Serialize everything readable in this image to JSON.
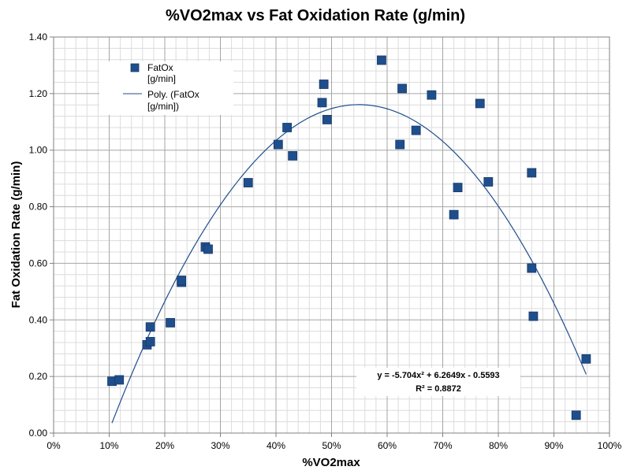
{
  "chart_data": {
    "type": "scatter",
    "title": "%VO2max  vs Fat Oxidation Rate (g/min)",
    "xlabel": "%VO2max",
    "ylabel": "Fat Oxidation Rate (g/min)",
    "xlim": [
      0,
      1
    ],
    "ylim": [
      0,
      1.4
    ],
    "x_ticks": [
      "0%",
      "10%",
      "20%",
      "30%",
      "40%",
      "50%",
      "60%",
      "70%",
      "80%",
      "90%",
      "100%"
    ],
    "y_ticks": [
      "0.00",
      "0.20",
      "0.40",
      "0.60",
      "0.80",
      "1.00",
      "1.20",
      "1.40"
    ],
    "grid": true,
    "legend_position": "top-left",
    "legend": [
      {
        "line1": "FatOx",
        "line2": "[g/min]"
      },
      {
        "line1": "Poly. (FatOx",
        "line2": "[g/min])"
      }
    ],
    "series": [
      {
        "name": "FatOx [g/min]",
        "kind": "scatter",
        "color": "#1f4e8c",
        "points": [
          [
            0.105,
            0.183
          ],
          [
            0.118,
            0.188
          ],
          [
            0.168,
            0.312
          ],
          [
            0.174,
            0.323
          ],
          [
            0.174,
            0.375
          ],
          [
            0.21,
            0.39
          ],
          [
            0.23,
            0.533
          ],
          [
            0.23,
            0.54
          ],
          [
            0.273,
            0.658
          ],
          [
            0.278,
            0.65
          ],
          [
            0.35,
            0.885
          ],
          [
            0.404,
            1.02
          ],
          [
            0.42,
            1.08
          ],
          [
            0.43,
            0.98
          ],
          [
            0.483,
            1.168
          ],
          [
            0.486,
            1.233
          ],
          [
            0.492,
            1.108
          ],
          [
            0.59,
            1.318
          ],
          [
            0.623,
            1.02
          ],
          [
            0.627,
            1.218
          ],
          [
            0.652,
            1.07
          ],
          [
            0.68,
            1.195
          ],
          [
            0.72,
            0.772
          ],
          [
            0.727,
            0.868
          ],
          [
            0.767,
            1.165
          ],
          [
            0.782,
            0.888
          ],
          [
            0.86,
            0.92
          ],
          [
            0.86,
            0.583
          ],
          [
            0.863,
            0.413
          ],
          [
            0.94,
            0.063
          ],
          [
            0.958,
            0.262
          ]
        ]
      },
      {
        "name": "Poly. (FatOx [g/min])",
        "kind": "trendline",
        "color": "#1f4e8c",
        "coefficients": [
          -5.704,
          6.2649,
          -0.5593
        ],
        "x_range": [
          0.105,
          0.958
        ]
      }
    ],
    "annotations": {
      "equation": "y = -5.704x² + 6.2649x  - 0.5593",
      "r_squared": "R² = 0.8872"
    }
  }
}
